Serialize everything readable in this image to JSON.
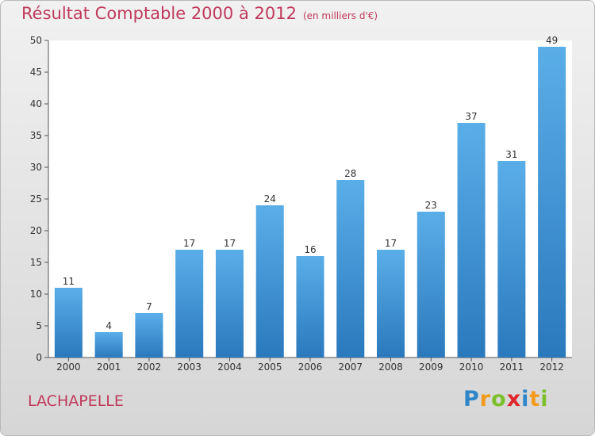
{
  "header": {
    "title": "Résultat Comptable 2000 à 2012",
    "subtitle": "(en milliers d'€)"
  },
  "footer": {
    "town": "LACHAPELLE",
    "brand": "Proxiti",
    "brand_letters": [
      {
        "ch": "P",
        "color": "#2e86c8"
      },
      {
        "ch": "r",
        "color": "#f39a1c"
      },
      {
        "ch": "o",
        "color": "#7bbf2a"
      },
      {
        "ch": "x",
        "color": "#e0262c"
      },
      {
        "ch": "i",
        "color": "#2e86c8"
      },
      {
        "ch": "t",
        "color": "#f39a1c"
      },
      {
        "ch": "i",
        "color": "#7bbf2a"
      }
    ]
  },
  "colors": {
    "bar_light": "#5aaee8",
    "bar_dark": "#2a79bd",
    "title": "#c0395b"
  },
  "chart_data": {
    "type": "bar",
    "title": "Résultat Comptable 2000 à 2012",
    "subtitle": "(en milliers d'€)",
    "xlabel": "",
    "ylabel": "",
    "categories": [
      "2000",
      "2001",
      "2002",
      "2003",
      "2004",
      "2005",
      "2006",
      "2007",
      "2008",
      "2009",
      "2010",
      "2011",
      "2012"
    ],
    "values": [
      11,
      4,
      7,
      17,
      17,
      24,
      16,
      28,
      17,
      23,
      37,
      31,
      49
    ],
    "ylim": [
      0,
      50
    ],
    "yticks": [
      0,
      5,
      10,
      15,
      20,
      25,
      30,
      35,
      40,
      45,
      50
    ],
    "grid": false
  }
}
